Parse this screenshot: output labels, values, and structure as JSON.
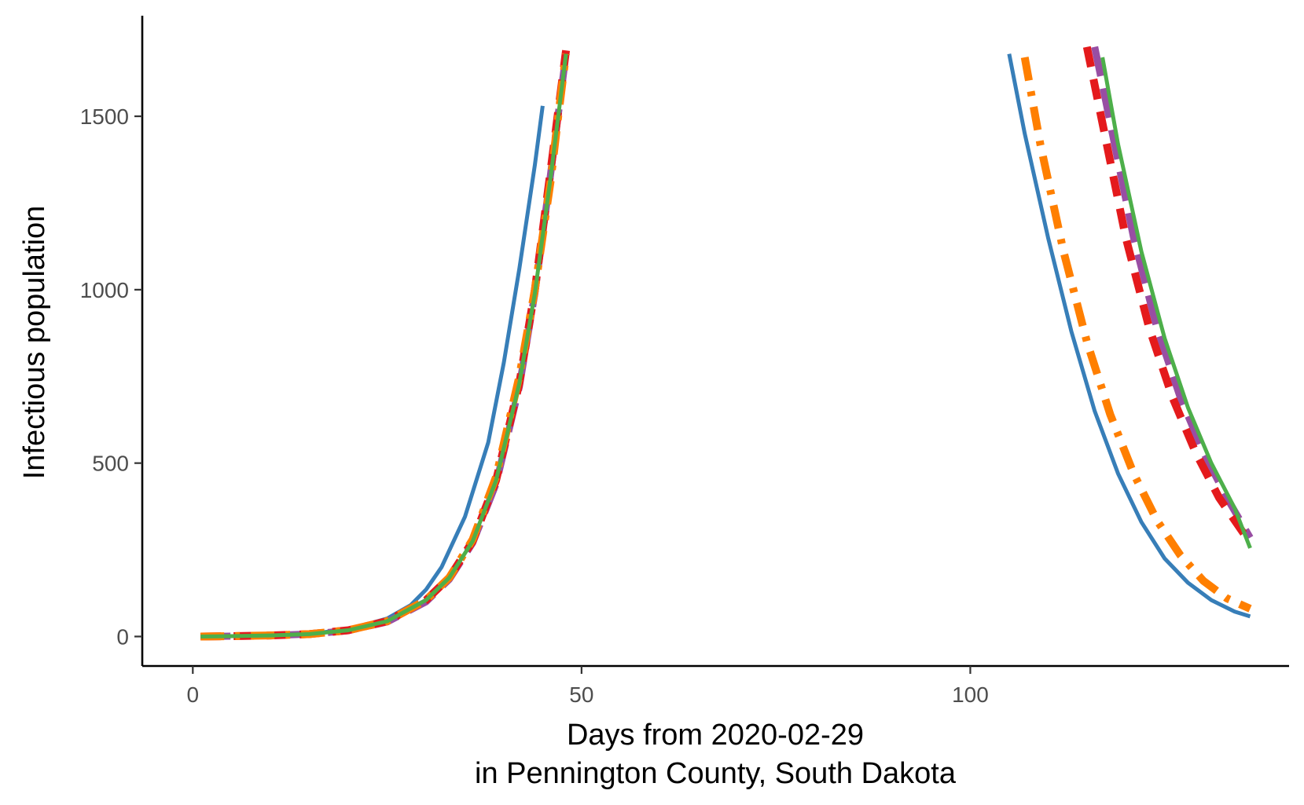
{
  "chart_data": {
    "type": "line",
    "xlabel_line1": "Days from 2020-02-29",
    "xlabel_line2": "in Pennington County, South Dakota",
    "ylabel": "Infectious population",
    "xlim": [
      -6.5,
      141
    ],
    "ylim": [
      -85,
      1790
    ],
    "x_ticks": [
      0,
      50,
      100
    ],
    "y_ticks": [
      0,
      500,
      1000,
      1500
    ],
    "grid": false,
    "legend": "none",
    "series": [
      {
        "color": "#377eb8",
        "style": "solid",
        "segments": [
          [
            [
              1,
              0
            ],
            [
              5,
              1
            ],
            [
              10,
              3
            ],
            [
              15,
              8
            ],
            [
              20,
              20
            ],
            [
              25,
              52
            ],
            [
              28,
              90
            ],
            [
              30,
              135
            ],
            [
              32,
              200
            ],
            [
              35,
              345
            ],
            [
              38,
              560
            ],
            [
              40,
              790
            ],
            [
              42,
              1060
            ],
            [
              44,
              1360
            ],
            [
              45,
              1530
            ]
          ],
          [
            [
              105,
              1680
            ],
            [
              107,
              1450
            ],
            [
              110,
              1150
            ],
            [
              113,
              880
            ],
            [
              116,
              650
            ],
            [
              119,
              470
            ],
            [
              122,
              330
            ],
            [
              125,
              225
            ],
            [
              128,
              155
            ],
            [
              131,
              105
            ],
            [
              134,
              72
            ],
            [
              136,
              58
            ]
          ]
        ]
      },
      {
        "color": "#984ea3",
        "style": "longdash",
        "segments": [
          [
            [
              1,
              0
            ],
            [
              5,
              1
            ],
            [
              10,
              3
            ],
            [
              15,
              7
            ],
            [
              20,
              17
            ],
            [
              25,
              42
            ],
            [
              30,
              100
            ],
            [
              33,
              165
            ],
            [
              36,
              270
            ],
            [
              39,
              440
            ],
            [
              42,
              720
            ],
            [
              44,
              990
            ],
            [
              46,
              1330
            ],
            [
              48,
              1680
            ]
          ],
          [
            [
              116,
              1700
            ],
            [
              118,
              1480
            ],
            [
              121,
              1150
            ],
            [
              124,
              890
            ],
            [
              127,
              690
            ],
            [
              130,
              530
            ],
            [
              133,
              400
            ],
            [
              136,
              285
            ]
          ]
        ]
      },
      {
        "color": "#e41a1c",
        "style": "dashed",
        "segments": [
          [
            [
              1,
              0
            ],
            [
              5,
              1
            ],
            [
              10,
              3
            ],
            [
              15,
              7
            ],
            [
              20,
              18
            ],
            [
              25,
              44
            ],
            [
              30,
              105
            ],
            [
              33,
              170
            ],
            [
              36,
              275
            ],
            [
              39,
              450
            ],
            [
              42,
              730
            ],
            [
              44,
              1000
            ],
            [
              46,
              1340
            ],
            [
              48,
              1690
            ]
          ],
          [
            [
              115,
              1700
            ],
            [
              117,
              1480
            ],
            [
              120,
              1150
            ],
            [
              123,
              890
            ],
            [
              126,
              690
            ],
            [
              129,
              530
            ],
            [
              132,
              400
            ],
            [
              136,
              270
            ]
          ]
        ]
      },
      {
        "color": "#ff7f00",
        "style": "dashdot",
        "segments": [
          [
            [
              1,
              0
            ],
            [
              5,
              1
            ],
            [
              10,
              3
            ],
            [
              15,
              7
            ],
            [
              20,
              18
            ],
            [
              25,
              44
            ],
            [
              30,
              105
            ],
            [
              33,
              170
            ],
            [
              36,
              280
            ],
            [
              39,
              460
            ],
            [
              42,
              750
            ],
            [
              44,
              1000
            ],
            [
              46,
              1310
            ],
            [
              47,
              1500
            ],
            [
              48,
              1680
            ]
          ],
          [
            [
              107,
              1670
            ],
            [
              109,
              1420
            ],
            [
              112,
              1110
            ],
            [
              115,
              850
            ],
            [
              118,
              640
            ],
            [
              121,
              470
            ],
            [
              124,
              335
            ],
            [
              127,
              235
            ],
            [
              130,
              160
            ],
            [
              133,
              110
            ],
            [
              136,
              80
            ]
          ]
        ]
      },
      {
        "color": "#4daf4a",
        "style": "solid",
        "segments": [
          [
            [
              1,
              0
            ],
            [
              5,
              1
            ],
            [
              10,
              3
            ],
            [
              15,
              7
            ],
            [
              20,
              18
            ],
            [
              25,
              44
            ],
            [
              30,
              105
            ],
            [
              33,
              170
            ],
            [
              36,
              275
            ],
            [
              39,
              450
            ],
            [
              42,
              730
            ],
            [
              44,
              990
            ],
            [
              46,
              1320
            ],
            [
              48,
              1680
            ]
          ],
          [
            [
              117,
              1670
            ],
            [
              119,
              1420
            ],
            [
              122,
              1110
            ],
            [
              125,
              860
            ],
            [
              128,
              660
            ],
            [
              131,
              500
            ],
            [
              134,
              370
            ],
            [
              136,
              255
            ]
          ]
        ]
      }
    ]
  }
}
